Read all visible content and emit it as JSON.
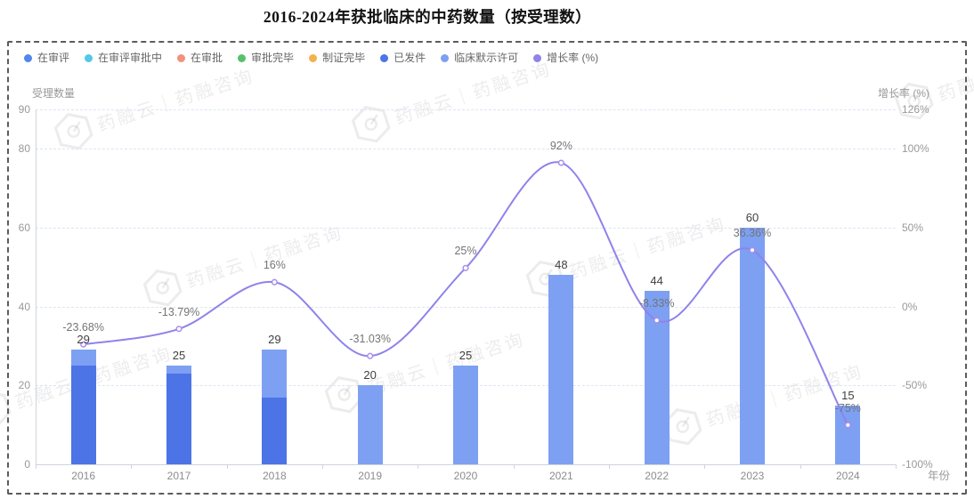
{
  "title": "2016-2024年获批临床的中药数量（按受理数）",
  "watermark_text": "药融云｜药融咨询",
  "legend": {
    "items": [
      {
        "label": "在审评",
        "color": "#5087ec"
      },
      {
        "label": "在审评审批中",
        "color": "#54c8e8"
      },
      {
        "label": "在审批",
        "color": "#f2917e"
      },
      {
        "label": "审批完毕",
        "color": "#57c16a"
      },
      {
        "label": "制证完毕",
        "color": "#f3b24b"
      },
      {
        "label": "已发件",
        "color": "#4c74e6"
      },
      {
        "label": "临床默示许可",
        "color": "#7da0f2"
      },
      {
        "label": "增长率 (%)",
        "color": "#8f83ea"
      }
    ]
  },
  "chart_data": {
    "type": "bar",
    "subtype": "stacked bars with growth-rate line, dual y-axes",
    "categories": [
      "2016",
      "2017",
      "2018",
      "2019",
      "2020",
      "2021",
      "2022",
      "2023",
      "2024"
    ],
    "series": [
      {
        "name": "已发件",
        "type": "bar",
        "stack": "total",
        "color": "#4c74e6",
        "values": [
          25,
          23,
          17,
          0,
          0,
          0,
          0,
          0,
          0
        ]
      },
      {
        "name": "临床默示许可",
        "type": "bar",
        "stack": "total",
        "color": "#7da0f2",
        "values": [
          4,
          2,
          12,
          20,
          25,
          48,
          44,
          60,
          15
        ]
      },
      {
        "name": "增长率 (%)",
        "type": "line",
        "color": "#8f83ea",
        "values": [
          -23.68,
          -13.79,
          16,
          -31.03,
          25,
          92,
          -8.33,
          36.36,
          -75
        ]
      }
    ],
    "bar_totals": [
      29,
      25,
      29,
      20,
      25,
      48,
      44,
      60,
      15
    ],
    "growth_labels": [
      "-23.68%",
      "-13.79%",
      "16%",
      "-31.03%",
      "25%",
      "92%",
      "-8.33%",
      "36.36%",
      "-75%"
    ],
    "left_axis": {
      "name": "受理数量",
      "tick_values": [
        0,
        20,
        40,
        60,
        80,
        90
      ],
      "range": [
        0,
        90
      ]
    },
    "right_axis": {
      "name": "增长率 (%)",
      "tick_labels": [
        "-100%",
        "-50%",
        "0%",
        "50%",
        "100%",
        "126%"
      ],
      "tick_values": [
        -100,
        -50,
        0,
        50,
        100,
        126
      ],
      "range": [
        -100,
        126
      ]
    },
    "x_axis_name": "年份",
    "grid": "horizontal dashed gridlines",
    "legend_position": "top-left"
  },
  "colors": {
    "grid": "#dbe5f1",
    "axis": "#cfd4dc",
    "tick_label": "#999999",
    "bar_label": "#404040",
    "pct_label": "#757575",
    "line": "#8f83ea",
    "marker_fill": "#ffffff",
    "marker_stroke": "#a88cf0",
    "border": "#5c5c5c"
  }
}
